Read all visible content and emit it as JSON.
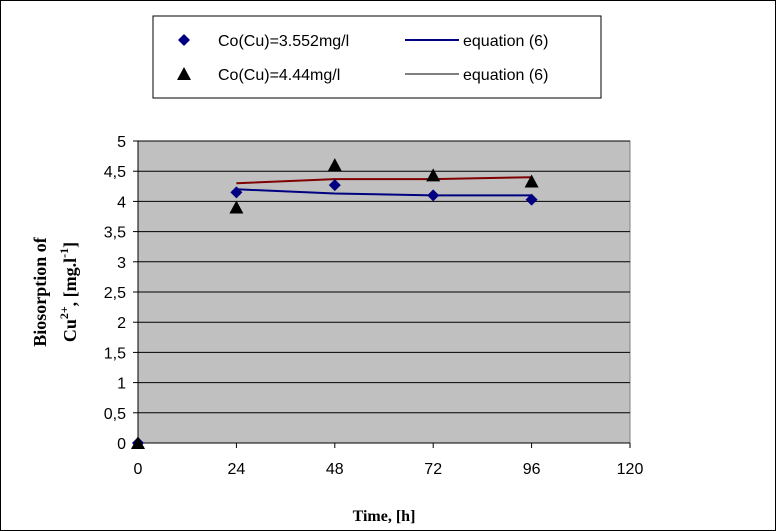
{
  "chart_data": {
    "type": "scatter",
    "title": "",
    "xlabel": "Time, [h]",
    "ylabel_line1": "Biosorption of",
    "ylabel_line2_parts": [
      "Cu",
      "2+",
      ", [mg.l",
      "-1",
      "]"
    ],
    "xlim": [
      0,
      120
    ],
    "ylim": [
      0,
      5
    ],
    "x_ticks": [
      0,
      24,
      48,
      72,
      96,
      120
    ],
    "x_tick_labels": [
      "0",
      "24",
      "48",
      "72",
      "96",
      "120"
    ],
    "y_ticks": [
      0,
      0.5,
      1,
      1.5,
      2,
      2.5,
      3,
      3.5,
      4,
      4.5,
      5
    ],
    "y_tick_labels": [
      "0",
      "0,5",
      "1",
      "1,5",
      "2",
      "2,5",
      "3",
      "3,5",
      "4",
      "4,5",
      "5"
    ],
    "grid": "horizontal",
    "plot_background": "#c0c0c0",
    "legend_position": "top",
    "series": [
      {
        "name": "Co(Cu)=3.552mg/l",
        "marker": "diamond",
        "color": "#000080",
        "x": [
          0,
          24,
          48,
          72,
          96
        ],
        "y": [
          0,
          4.15,
          4.27,
          4.1,
          4.03
        ]
      },
      {
        "name": "Co(Cu)=4.44mg/l",
        "marker": "triangle",
        "color": "#000000",
        "x": [
          0,
          24,
          48,
          72,
          96
        ],
        "y": [
          0,
          3.9,
          4.6,
          4.43,
          4.33
        ]
      }
    ],
    "fit_lines": [
      {
        "name": "equation (6)",
        "color": "#000080",
        "x": [
          24,
          48,
          72,
          96
        ],
        "y": [
          4.2,
          4.13,
          4.1,
          4.1
        ]
      },
      {
        "name": "equation (6)",
        "color": "#800000",
        "legend_color": "#000000",
        "x": [
          24,
          48,
          72,
          96
        ],
        "y": [
          4.3,
          4.37,
          4.37,
          4.4
        ]
      }
    ]
  }
}
